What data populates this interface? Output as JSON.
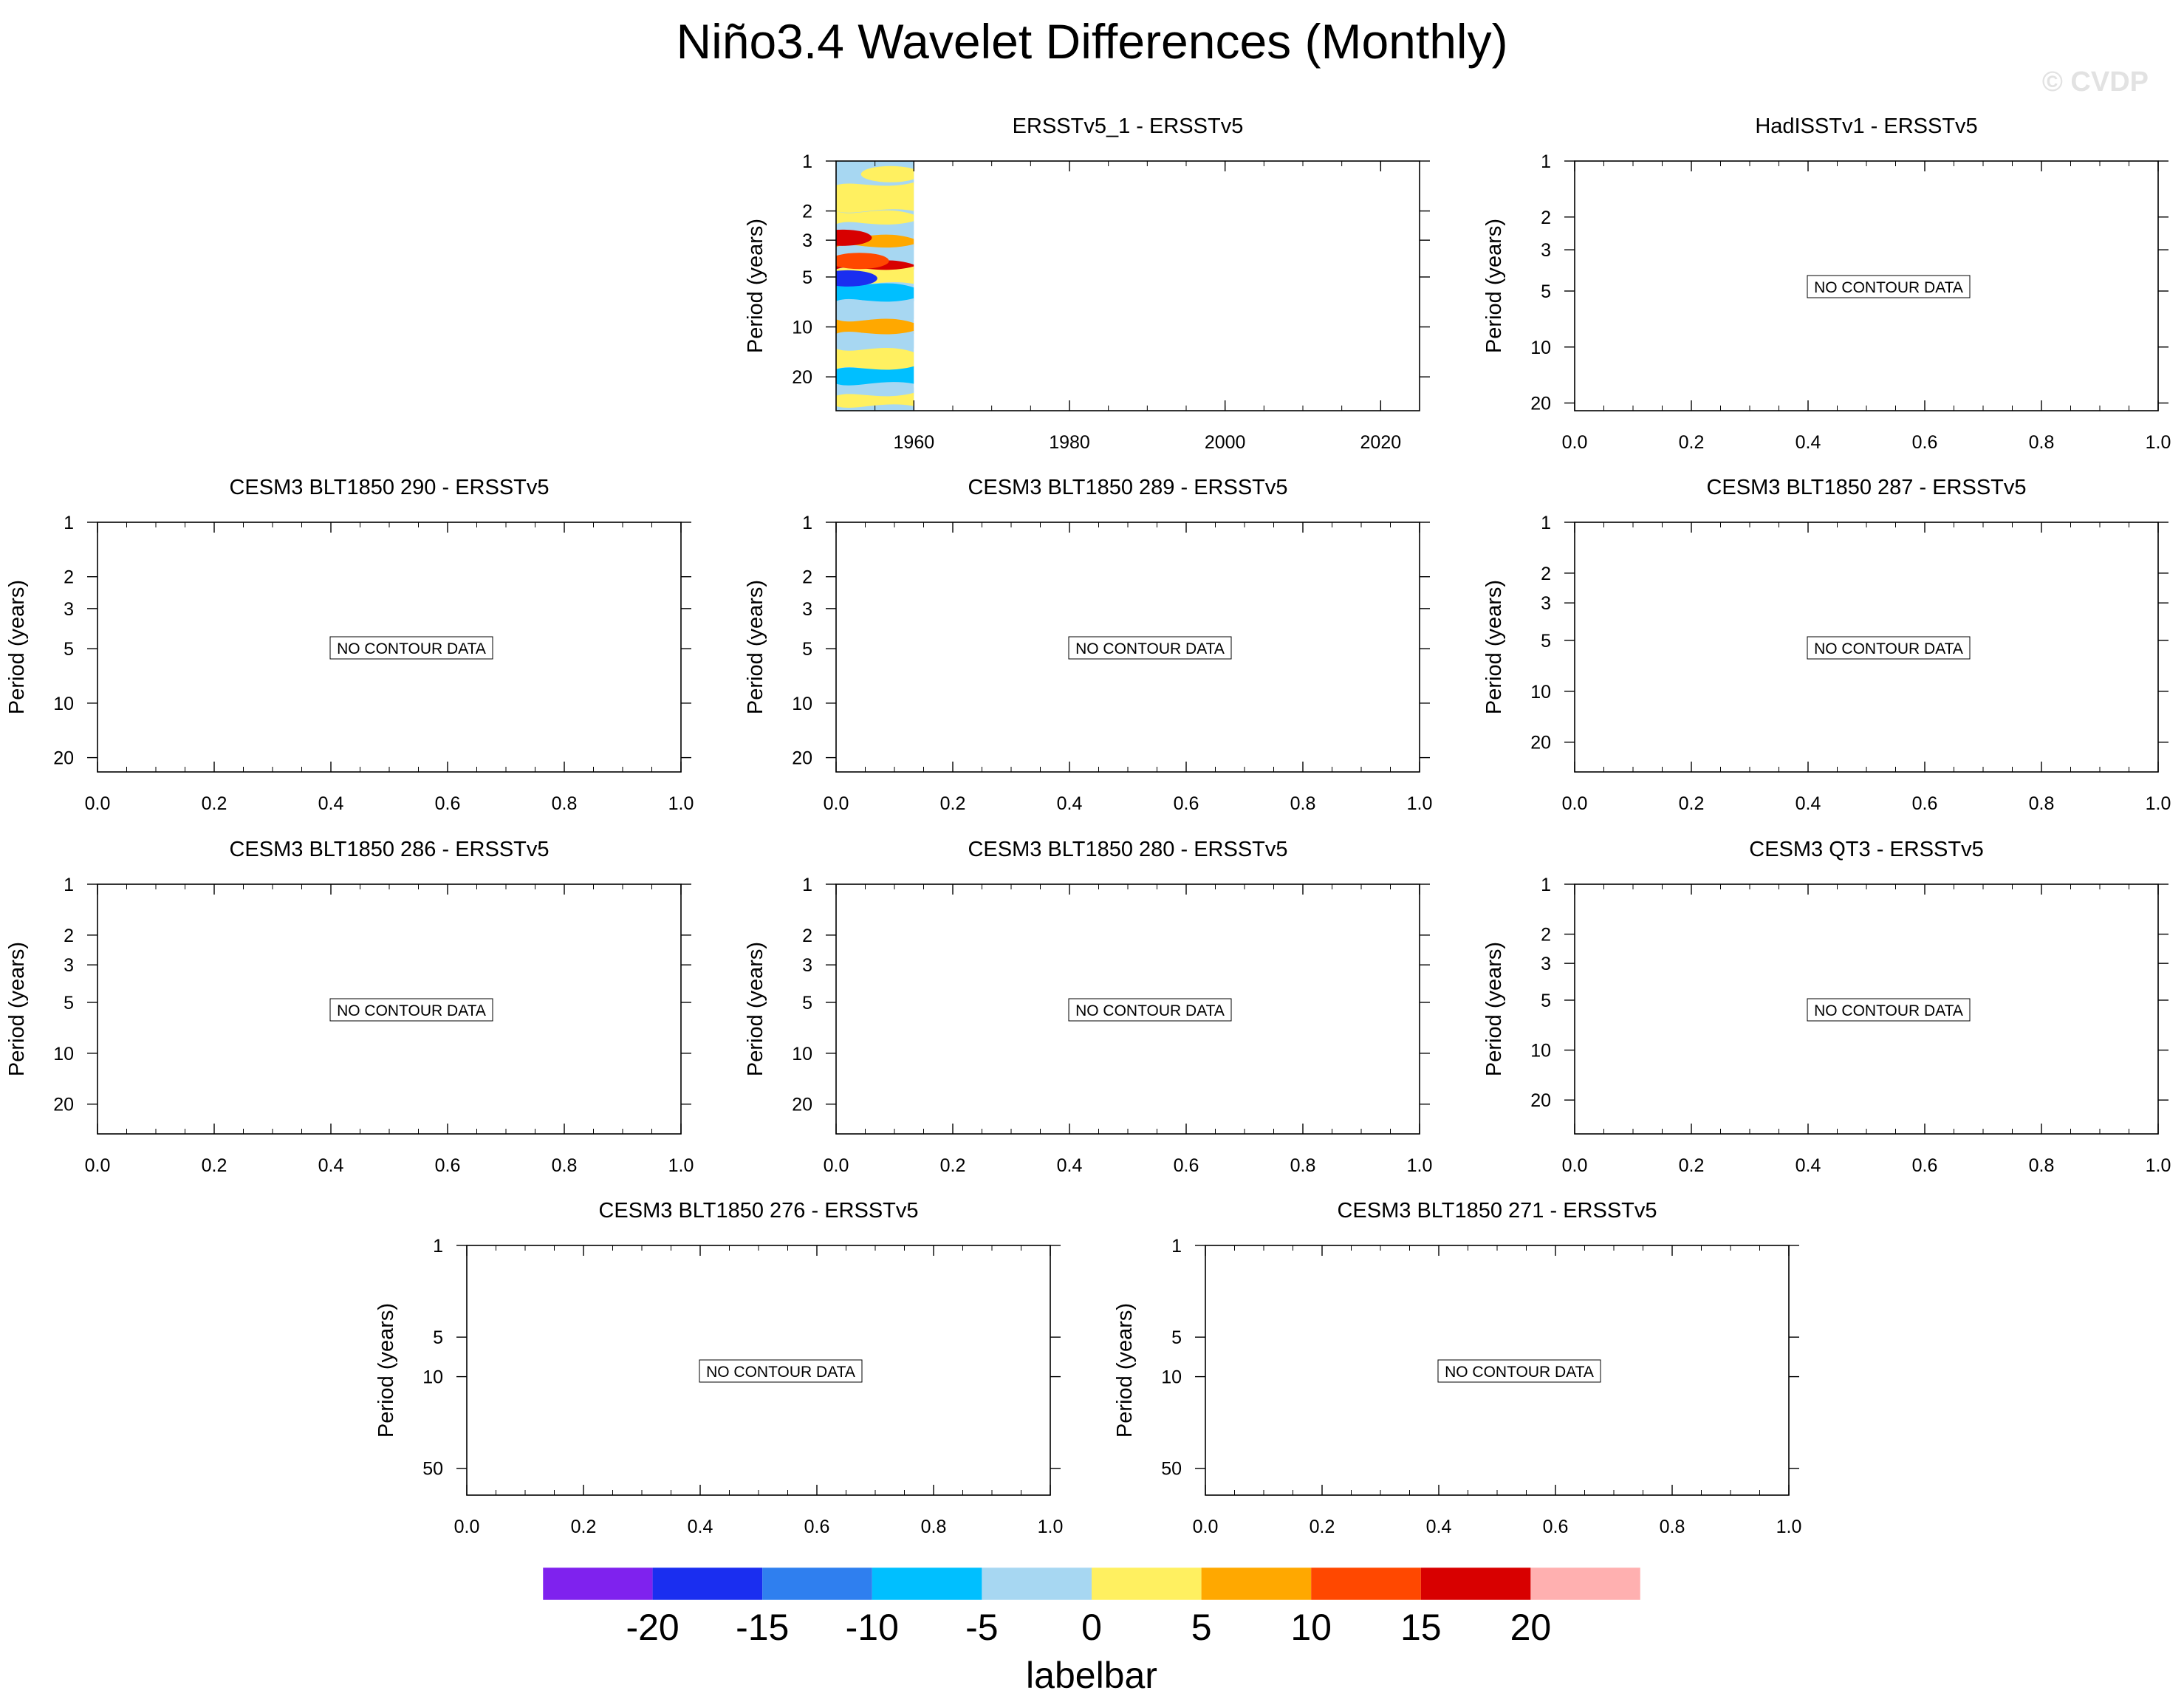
{
  "figure": {
    "title": "Niño3.4 Wavelet Differences (Monthly)",
    "watermark": "© CVDP",
    "no_data_text": "NO CONTOUR DATA",
    "ylabel": "Period (years)"
  },
  "colorbar": {
    "colors": [
      "#7f22ee",
      "#1a2ef0",
      "#2f7fef",
      "#00bfff",
      "#a7d7f2",
      "#fff060",
      "#ffa800",
      "#ff4800",
      "#d80000",
      "#ffb0b0"
    ],
    "tick_labels": [
      "-20",
      "-15",
      "-10",
      "-5",
      "0",
      "5",
      "10",
      "15",
      "20"
    ],
    "label": "labelbar"
  },
  "chart_data": [
    {
      "type": "heatmap",
      "title": "ERSSTv5_1 - ERSSTv5",
      "xlabel": "",
      "ylabel": "Period (years)",
      "xlim": [
        1950,
        2025
      ],
      "x_ticks": [
        "1960",
        "1980",
        "2000",
        "2020"
      ],
      "y_ticks": [
        "1",
        "2",
        "3",
        "5",
        "10",
        "20"
      ],
      "has_data": true,
      "data_xrange": [
        1950,
        1960
      ],
      "bands": [
        {
          "period": 1.0,
          "color": "#a7d7f2"
        },
        {
          "period": 1.4,
          "color": "#fff060"
        },
        {
          "period": 2.0,
          "color": "#fff060"
        },
        {
          "period": 2.4,
          "color": "#a7d7f2"
        },
        {
          "period": 2.8,
          "color": "#ffa800"
        },
        {
          "period": 3.3,
          "color": "#a7d7f2"
        },
        {
          "period": 4.0,
          "color": "#d80000"
        },
        {
          "period": 4.5,
          "color": "#fff060"
        },
        {
          "period": 5.5,
          "color": "#00bfff"
        },
        {
          "period": 7.0,
          "color": "#a7d7f2"
        },
        {
          "period": 9.0,
          "color": "#ffa800"
        },
        {
          "period": 11.0,
          "color": "#a7d7f2"
        },
        {
          "period": 13.5,
          "color": "#fff060"
        },
        {
          "period": 18.0,
          "color": "#00bfff"
        },
        {
          "period": 22.0,
          "color": "#a7d7f2"
        },
        {
          "period": 26.0,
          "color": "#fff060"
        },
        {
          "period": 30.0,
          "color": "#a7d7f2"
        }
      ],
      "blobs": [
        {
          "year": 1951.5,
          "period": 5.1,
          "color": "#1a2ef0"
        },
        {
          "year": 1950.8,
          "period": 2.9,
          "color": "#d80000"
        },
        {
          "year": 1953,
          "period": 4.0,
          "color": "#ff4800"
        },
        {
          "year": 1957,
          "period": 1.2,
          "color": "#fff060"
        }
      ]
    },
    {
      "type": "heatmap",
      "title": "HadISSTv1 - ERSSTv5",
      "ylabel": "Period (years)",
      "x_ticks": [
        "0.0",
        "0.2",
        "0.4",
        "0.6",
        "0.8",
        "1.0"
      ],
      "y_ticks": [
        "1",
        "2",
        "3",
        "5",
        "10",
        "20"
      ],
      "has_data": false
    },
    {
      "type": "heatmap",
      "title": "CESM3 BLT1850 290 - ERSSTv5",
      "ylabel": "Period (years)",
      "x_ticks": [
        "0.0",
        "0.2",
        "0.4",
        "0.6",
        "0.8",
        "1.0"
      ],
      "y_ticks": [
        "1",
        "2",
        "3",
        "5",
        "10",
        "20"
      ],
      "has_data": false
    },
    {
      "type": "heatmap",
      "title": "CESM3 BLT1850 289 - ERSSTv5",
      "ylabel": "Period (years)",
      "x_ticks": [
        "0.0",
        "0.2",
        "0.4",
        "0.6",
        "0.8",
        "1.0"
      ],
      "y_ticks": [
        "1",
        "2",
        "3",
        "5",
        "10",
        "20"
      ],
      "has_data": false
    },
    {
      "type": "heatmap",
      "title": "CESM3 BLT1850 287 - ERSSTv5",
      "ylabel": "Period (years)",
      "x_ticks": [
        "0.0",
        "0.2",
        "0.4",
        "0.6",
        "0.8",
        "1.0"
      ],
      "y_ticks": [
        "1",
        "2",
        "3",
        "5",
        "10",
        "20"
      ],
      "has_data": false
    },
    {
      "type": "heatmap",
      "title": "CESM3 BLT1850 286 - ERSSTv5",
      "ylabel": "Period (years)",
      "x_ticks": [
        "0.0",
        "0.2",
        "0.4",
        "0.6",
        "0.8",
        "1.0"
      ],
      "y_ticks": [
        "1",
        "2",
        "3",
        "5",
        "10",
        "20"
      ],
      "has_data": false
    },
    {
      "type": "heatmap",
      "title": "CESM3 BLT1850 280 - ERSSTv5",
      "ylabel": "Period (years)",
      "x_ticks": [
        "0.0",
        "0.2",
        "0.4",
        "0.6",
        "0.8",
        "1.0"
      ],
      "y_ticks": [
        "1",
        "2",
        "3",
        "5",
        "10",
        "20"
      ],
      "has_data": false
    },
    {
      "type": "heatmap",
      "title": "CESM3 QT3 - ERSSTv5",
      "ylabel": "Period (years)",
      "x_ticks": [
        "0.0",
        "0.2",
        "0.4",
        "0.6",
        "0.8",
        "1.0"
      ],
      "y_ticks": [
        "1",
        "2",
        "3",
        "5",
        "10",
        "20"
      ],
      "has_data": false
    },
    {
      "type": "heatmap",
      "title": "CESM3 BLT1850 276 - ERSSTv5",
      "ylabel": "Period (years)",
      "x_ticks": [
        "0.0",
        "0.2",
        "0.4",
        "0.6",
        "0.8",
        "1.0"
      ],
      "y_ticks": [
        "1",
        "5",
        "10",
        "50"
      ],
      "has_data": false
    },
    {
      "type": "heatmap",
      "title": "CESM3 BLT1850 271 - ERSSTv5",
      "ylabel": "Period (years)",
      "x_ticks": [
        "0.0",
        "0.2",
        "0.4",
        "0.6",
        "0.8",
        "1.0"
      ],
      "y_ticks": [
        "1",
        "5",
        "10",
        "50"
      ],
      "has_data": false
    }
  ]
}
